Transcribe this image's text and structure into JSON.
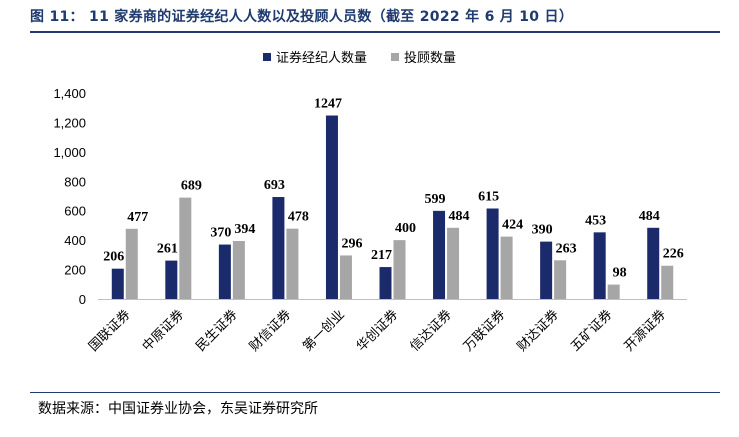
{
  "figure": {
    "title": "图 11：  11 家券商的证券经纪人人数以及投顾人员数（截至 2022 年 6 月 10 日）",
    "source": "数据来源：中国证券业协会，东吴证券研究所"
  },
  "chart_data": {
    "type": "bar",
    "categories": [
      "国联证券",
      "中原证券",
      "民生证券",
      "财信证券",
      "第一创业",
      "华创证券",
      "信达证券",
      "万联证券",
      "财达证券",
      "五矿证券",
      "开源证券"
    ],
    "series": [
      {
        "name": "证券经纪人数量",
        "color": "#1b2a6b",
        "values": [
          206,
          261,
          370,
          693,
          1247,
          217,
          599,
          615,
          390,
          453,
          484
        ]
      },
      {
        "name": "投顾数量",
        "color": "#a6a6a6",
        "values": [
          477,
          689,
          394,
          478,
          296,
          400,
          484,
          424,
          263,
          98,
          226
        ]
      }
    ],
    "ylim": [
      0,
      1400
    ],
    "yticks": [
      0,
      200,
      400,
      600,
      800,
      1000,
      1200,
      1400
    ],
    "ytick_labels": [
      "0",
      "200",
      "400",
      "600",
      "800",
      "1,000",
      "1,200",
      "1,400"
    ],
    "legend_position": "top-center",
    "grid": false,
    "data_labels": true
  }
}
